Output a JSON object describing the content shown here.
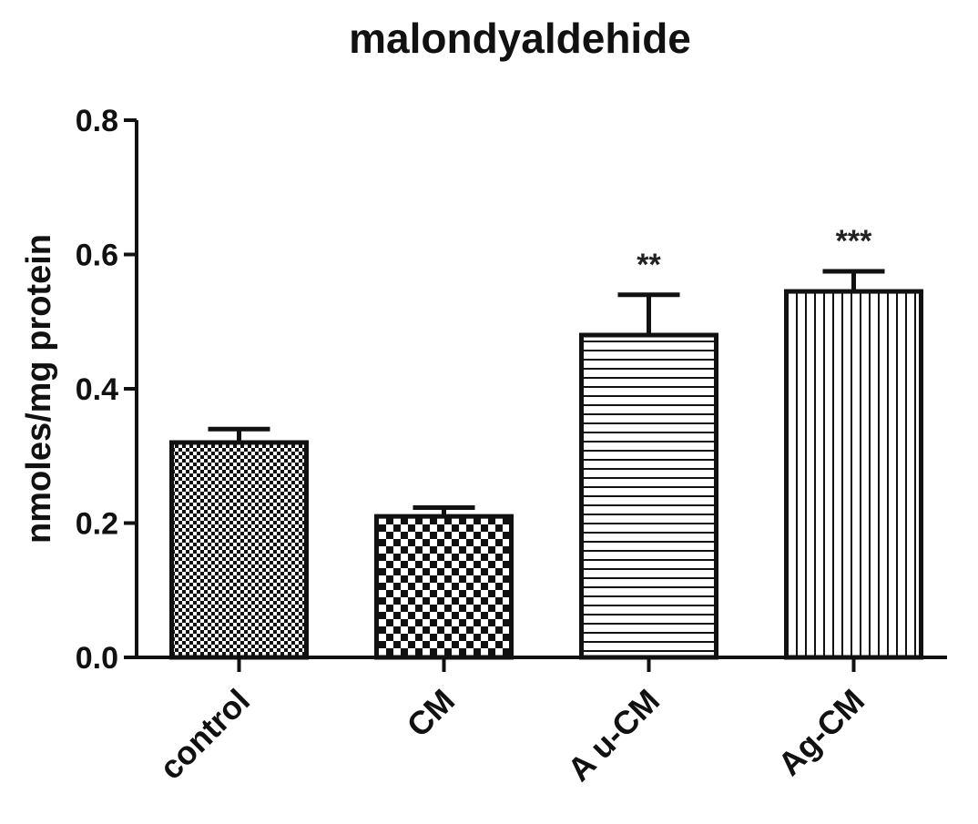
{
  "chart_data": {
    "type": "bar",
    "title": "malondyaldehide",
    "ylabel": "nmoles/mg protein",
    "xlabel": "",
    "categories": [
      "control",
      "CM",
      "Au-CM",
      "Ag-CM"
    ],
    "category_labels": [
      "control",
      "CM",
      "A u-CM",
      "Ag-CM"
    ],
    "values": [
      0.32,
      0.21,
      0.48,
      0.545
    ],
    "error_upper": [
      0.02,
      0.013,
      0.06,
      0.03
    ],
    "significance": [
      "",
      "",
      "**",
      "***"
    ],
    "ylim": [
      0.0,
      0.8
    ],
    "yticks": [
      0.0,
      0.2,
      0.4,
      0.6,
      0.8
    ],
    "ytick_labels": [
      "0.0",
      "0.2",
      "0.4",
      "0.6",
      "0.8"
    ],
    "bar_patterns": [
      "fine-checker",
      "checker",
      "horizontal-lines",
      "vertical-lines"
    ],
    "grid": false,
    "colors": {
      "ink": "#111111",
      "background": "#ffffff"
    }
  }
}
